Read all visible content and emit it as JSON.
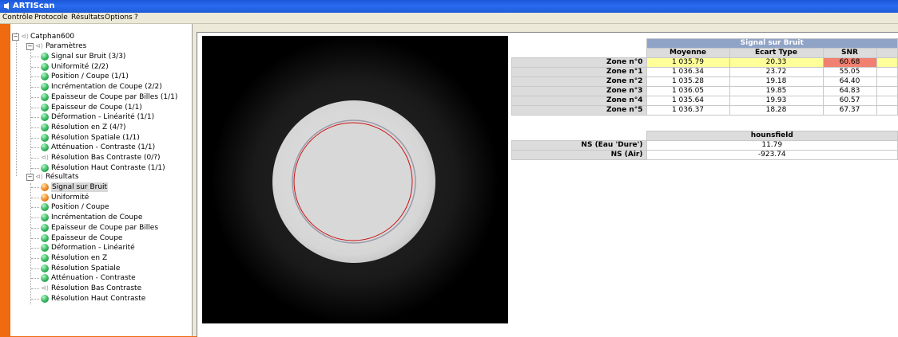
{
  "window": {
    "title": "ARTIScan"
  },
  "menu": [
    "Contrôle",
    "Protocole",
    "Résultats",
    "Options",
    "?"
  ],
  "tree": {
    "root": "Catphan600",
    "parametres": {
      "label": "Paramètres",
      "items": [
        {
          "label": "Signal sur Bruit (3/3)",
          "status": "ok"
        },
        {
          "label": "Uniformité (2/2)",
          "status": "ok"
        },
        {
          "label": "Position / Coupe (1/1)",
          "status": "ok"
        },
        {
          "label": "Incrémentation de Coupe (2/2)",
          "status": "ok"
        },
        {
          "label": "Epaisseur de Coupe par Billes (1/1)",
          "status": "ok"
        },
        {
          "label": "Epaisseur de Coupe (1/1)",
          "status": "ok"
        },
        {
          "label": "Déformation - Linéarité (1/1)",
          "status": "ok"
        },
        {
          "label": "Résolution en Z (4/?)",
          "status": "ok"
        },
        {
          "label": "Résolution Spatiale (1/1)",
          "status": "ok"
        },
        {
          "label": "Atténuation - Contraste (1/1)",
          "status": "ok"
        },
        {
          "label": "Résolution Bas Contraste (0/?)",
          "status": "none"
        },
        {
          "label": "Résolution Haut Contraste (1/1)",
          "status": "ok"
        }
      ]
    },
    "resultats": {
      "label": "Résultats",
      "items": [
        {
          "label": "Signal sur Bruit",
          "status": "warn",
          "selected": true
        },
        {
          "label": "Uniformité",
          "status": "warn"
        },
        {
          "label": "Position / Coupe",
          "status": "ok"
        },
        {
          "label": "Incrémentation de Coupe",
          "status": "ok"
        },
        {
          "label": "Epaisseur de Coupe par Billes",
          "status": "ok"
        },
        {
          "label": "Epaisseur de Coupe",
          "status": "ok"
        },
        {
          "label": "Déformation - Linéarité",
          "status": "ok"
        },
        {
          "label": "Résolution en Z",
          "status": "ok"
        },
        {
          "label": "Résolution Spatiale",
          "status": "ok"
        },
        {
          "label": "Atténuation - Contraste",
          "status": "ok"
        },
        {
          "label": "Résolution Bas Contraste",
          "status": "none"
        },
        {
          "label": "Résolution Haut Contraste",
          "status": "ok"
        }
      ]
    }
  },
  "snr_table": {
    "title": "Signal sur Bruit",
    "columns": [
      "Moyenne",
      "Ecart Type",
      "SNR"
    ],
    "rows": [
      {
        "zone": "Zone n°0",
        "moyenne": "1 035.79",
        "ecart": "20.33",
        "snr": "60.68",
        "highlight": true
      },
      {
        "zone": "Zone n°1",
        "moyenne": "1 036.34",
        "ecart": "23.72",
        "snr": "55.05"
      },
      {
        "zone": "Zone n°2",
        "moyenne": "1 035.28",
        "ecart": "19.18",
        "snr": "64.40"
      },
      {
        "zone": "Zone n°3",
        "moyenne": "1 036.05",
        "ecart": "19.85",
        "snr": "64.83"
      },
      {
        "zone": "Zone n°4",
        "moyenne": "1 035.64",
        "ecart": "19.93",
        "snr": "60.57"
      },
      {
        "zone": "Zone n°5",
        "moyenne": "1 036.37",
        "ecart": "18.28",
        "snr": "67.37"
      }
    ]
  },
  "hu_table": {
    "column": "hounsfield",
    "rows": [
      {
        "label": "NS (Eau 'Dure')",
        "value": "11.79"
      },
      {
        "label": "NS (Air)",
        "value": "-923.74"
      }
    ]
  },
  "colors": {
    "titlebar": "#1e5cd8",
    "accent_orange": "#f06a10",
    "table_header": "#8fa3c6",
    "highlight_yellow": "#ffff99",
    "highlight_red": "#f08070",
    "roi_circle": "#cc1010"
  }
}
